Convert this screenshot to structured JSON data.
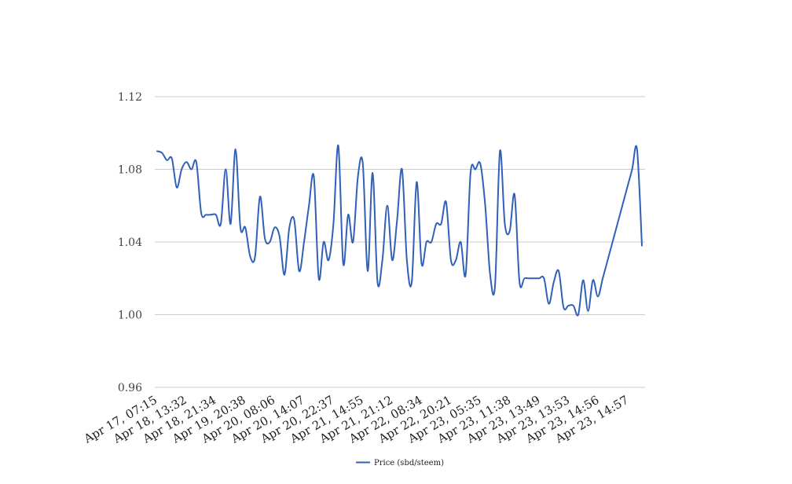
{
  "chart_data": {
    "type": "line",
    "title": "",
    "xlabel": "",
    "ylabel": "",
    "ylim": [
      0.96,
      1.12
    ],
    "yticks": [
      "0.96",
      "1.00",
      "1.04",
      "1.08",
      "1.12"
    ],
    "grid": true,
    "legend_position": "bottom",
    "xticklabels": [
      "Apr 17, 07:15",
      "Apr 18, 13:32",
      "Apr 18, 21:34",
      "Apr 19, 20:38",
      "Apr 20, 08:06",
      "Apr 20, 14:07",
      "Apr 20, 22:37",
      "Apr 21, 14:55",
      "Apr 21, 21:12",
      "Apr 22, 08:34",
      "Apr 22, 20:21",
      "Apr 23, 05:35",
      "Apr 23, 11:38",
      "Apr 23, 13:49",
      "Apr 23, 13:53",
      "Apr 23, 14:56",
      "Apr 23, 14:57"
    ],
    "series": [
      {
        "name": "Price (sbd/steem)",
        "color": "#3060b8",
        "values": [
          1.09,
          1.089,
          1.085,
          1.086,
          1.07,
          1.08,
          1.084,
          1.08,
          1.084,
          1.056,
          1.055,
          1.055,
          1.055,
          1.05,
          1.08,
          1.05,
          1.091,
          1.048,
          1.048,
          1.032,
          1.032,
          1.065,
          1.042,
          1.04,
          1.048,
          1.043,
          1.022,
          1.048,
          1.052,
          1.024,
          1.04,
          1.06,
          1.076,
          1.02,
          1.04,
          1.03,
          1.05,
          1.093,
          1.028,
          1.055,
          1.04,
          1.076,
          1.083,
          1.024,
          1.078,
          1.018,
          1.03,
          1.06,
          1.03,
          1.052,
          1.08,
          1.03,
          1.018,
          1.073,
          1.028,
          1.04,
          1.04,
          1.05,
          1.05,
          1.062,
          1.03,
          1.03,
          1.04,
          1.022,
          1.078,
          1.08,
          1.083,
          1.06,
          1.022,
          1.016,
          1.09,
          1.05,
          1.046,
          1.066,
          1.018,
          1.02,
          1.02,
          1.02,
          1.02,
          1.02,
          1.006,
          1.018,
          1.024,
          1.004,
          1.005,
          1.005,
          1.0,
          1.019,
          1.002,
          1.019,
          1.01,
          1.02,
          1.03,
          1.04,
          1.05,
          1.06,
          1.07,
          1.08,
          1.091,
          1.038
        ]
      }
    ]
  }
}
